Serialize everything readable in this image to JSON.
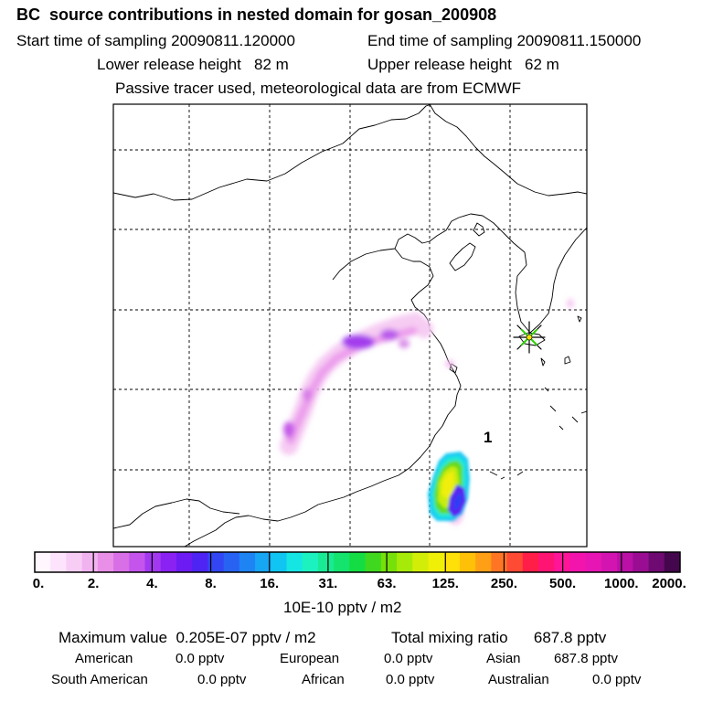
{
  "header": {
    "title": "BC  source contributions in nested domain for gosan_200908",
    "start_time": "Start time of sampling 20090811.120000",
    "end_time": "End time of sampling 20090811.150000",
    "lower_release": "Lower release height   82 m",
    "upper_release": "Upper release height   62 m",
    "tracer_note": "Passive tracer used, meteorological data are from ECMWF"
  },
  "map": {
    "label_one": "1",
    "station_marker": "star-icon"
  },
  "colorbar": {
    "colors": [
      "#fff6fe",
      "#fde3fb",
      "#f8cdf5",
      "#f1b3ef",
      "#e98fe8",
      "#d86fe7",
      "#c454ec",
      "#a238ef",
      "#8a22f3",
      "#6c1cf3",
      "#4d24f3",
      "#3247f3",
      "#2862f2",
      "#1e84f4",
      "#16a6f4",
      "#10c5f1",
      "#16e6e3",
      "#1cf2c0",
      "#18eb94",
      "#14e36e",
      "#14dd44",
      "#3fd81e",
      "#76e00a",
      "#a6ea0a",
      "#d2ee08",
      "#f0ef08",
      "#ffe008",
      "#ffc008",
      "#ff9f16",
      "#ff7524",
      "#ff4a34",
      "#ff1e48",
      "#ff1474",
      "#ff1598",
      "#f214ac",
      "#e615b4",
      "#d414b0",
      "#ba10a6",
      "#9a0d92",
      "#6e0a72",
      "#44064c"
    ],
    "ticks": [
      "0.",
      "2.",
      "4.",
      "8.",
      "16.",
      "31.",
      "63.",
      "125.",
      "250.",
      "500.",
      "1000.",
      "2000."
    ],
    "unit": "10E-10 pptv / m2"
  },
  "summary": {
    "max_value": "Maximum value  0.205E-07 pptv / m2",
    "total_mixing": "Total mixing ratio      687.8 pptv",
    "regions": [
      {
        "label": "American",
        "value": "0.0 pptv"
      },
      {
        "label": "European",
        "value": "0.0 pptv"
      },
      {
        "label": "Asian",
        "value": "687.8 pptv"
      },
      {
        "label": "South American",
        "value": "0.0 pptv"
      },
      {
        "label": "African",
        "value": "0.0 pptv"
      },
      {
        "label": "Australian",
        "value": "0.0 pptv"
      }
    ]
  }
}
